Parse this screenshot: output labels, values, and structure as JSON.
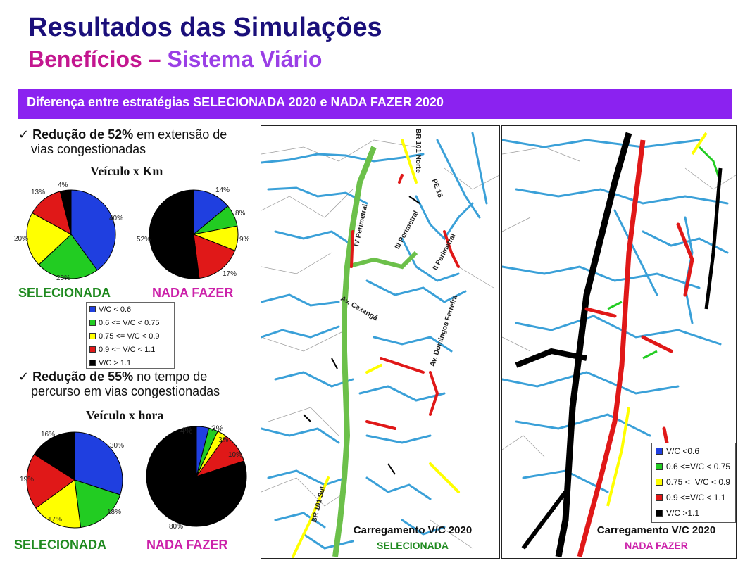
{
  "header": {
    "title": "Resultados das Simulações",
    "subtitle_part1": "Benefícios – ",
    "subtitle_part2": "Sistema Viário"
  },
  "banner": {
    "text": "Diferença entre estratégias SELECIONADA 2020 e NADA FAZER 2020"
  },
  "colors": {
    "title": "#1a0f7a",
    "subtitle_pink": "#c3168f",
    "subtitle_purple": "#9a3fe6",
    "banner_bg": "#8b22f0",
    "blue": "#1f3fe0",
    "green": "#22cc22",
    "yellow": "#ffff00",
    "red": "#e01818",
    "black": "#000000",
    "road_blue": "#3aa0d8",
    "road_green": "#6cc04a"
  },
  "bullet1": {
    "check": "✓",
    "bold": "Redução de 52%",
    "rest": " em extensão de",
    "line2": "vias congestionadas"
  },
  "bullet2": {
    "check": "✓",
    "bold": "Redução de 55%",
    "rest": " no tempo de",
    "line2": "percurso em vias congestionadas"
  },
  "chart_data": [
    {
      "type": "pie",
      "title": "Veículo  x Km",
      "caption": "SELECIONADA",
      "labels": [
        "V/C < 0.6",
        "0.6 <= V/C < 0.75",
        "0.75 <= V/C < 0.9",
        "0.9 <= V/C < 1.1",
        "V/C > 1.1"
      ],
      "colors": [
        "#1f3fe0",
        "#22cc22",
        "#ffff00",
        "#e01818",
        "#000000"
      ],
      "values": [
        40,
        23,
        20,
        13,
        4
      ],
      "value_labels": [
        "40%",
        "23%",
        "20%",
        "13%",
        "4%"
      ]
    },
    {
      "type": "pie",
      "title": "Veículo  x Km",
      "caption": "NADA FAZER",
      "labels": [
        "V/C < 0.6",
        "0.6 <= V/C < 0.75",
        "0.75 <= V/C < 0.9",
        "0.9 <= V/C < 1.1",
        "V/C > 1.1"
      ],
      "colors": [
        "#1f3fe0",
        "#22cc22",
        "#ffff00",
        "#e01818",
        "#000000"
      ],
      "values": [
        14,
        8,
        9,
        17,
        52
      ],
      "value_labels": [
        "14%",
        "8%",
        "9%",
        "17%",
        "52%"
      ]
    },
    {
      "type": "pie",
      "title": "Veículo  x hora",
      "caption": "SELECIONADA",
      "labels": [
        "V/C < 0.6",
        "0.6 <= V/C < 0.75",
        "0.75 <= V/C < 0.9",
        "0.9 <= V/C < 1.1",
        "V/C > 1.1"
      ],
      "colors": [
        "#1f3fe0",
        "#22cc22",
        "#ffff00",
        "#e01818",
        "#000000"
      ],
      "values": [
        30,
        18,
        17,
        19,
        16
      ],
      "value_labels": [
        "30%",
        "18%",
        "17%",
        "19%",
        "16%"
      ]
    },
    {
      "type": "pie",
      "title": "Veículo  x hora",
      "caption": "NADA FAZER",
      "labels": [
        "V/C < 0.6",
        "0.6 <= V/C < 0.75",
        "0.75 <= V/C < 0.9",
        "0.9 <= V/C < 1.1",
        "V/C > 1.1"
      ],
      "colors": [
        "#1f3fe0",
        "#22cc22",
        "#ffff00",
        "#e01818",
        "#000000"
      ],
      "values": [
        4,
        3,
        3,
        10,
        80
      ],
      "value_labels": [
        "4%",
        "3%",
        "3%",
        "10%",
        "80%"
      ]
    }
  ],
  "legend_left": [
    "V/C < 0.6",
    "0.6 <= V/C < 0.75",
    "0.75 <= V/C < 0.9",
    "0.9 <= V/C < 1.1",
    "V/C > 1.1"
  ],
  "map_left": {
    "caption_line1": "Carregamento V/C 2020",
    "caption_line2": "SELECIONADA",
    "labels": [
      "BR 101 Norte",
      "PE 15",
      "IV Perimetral",
      "III Perimetral",
      "II Perimetral",
      "Av. Caxangá",
      "Av. Domingos Ferreira",
      "BR 101 Sul"
    ]
  },
  "map_right": {
    "caption_line1": "Carregamento V/C 2020",
    "caption_line2": "NADA FAZER",
    "legend": [
      "V/C <0.6",
      "0.6 <=V/C < 0.75",
      "0.75 <=V/C < 0.9",
      "0.9 <=V/C < 1.1",
      "V/C >1.1"
    ]
  }
}
